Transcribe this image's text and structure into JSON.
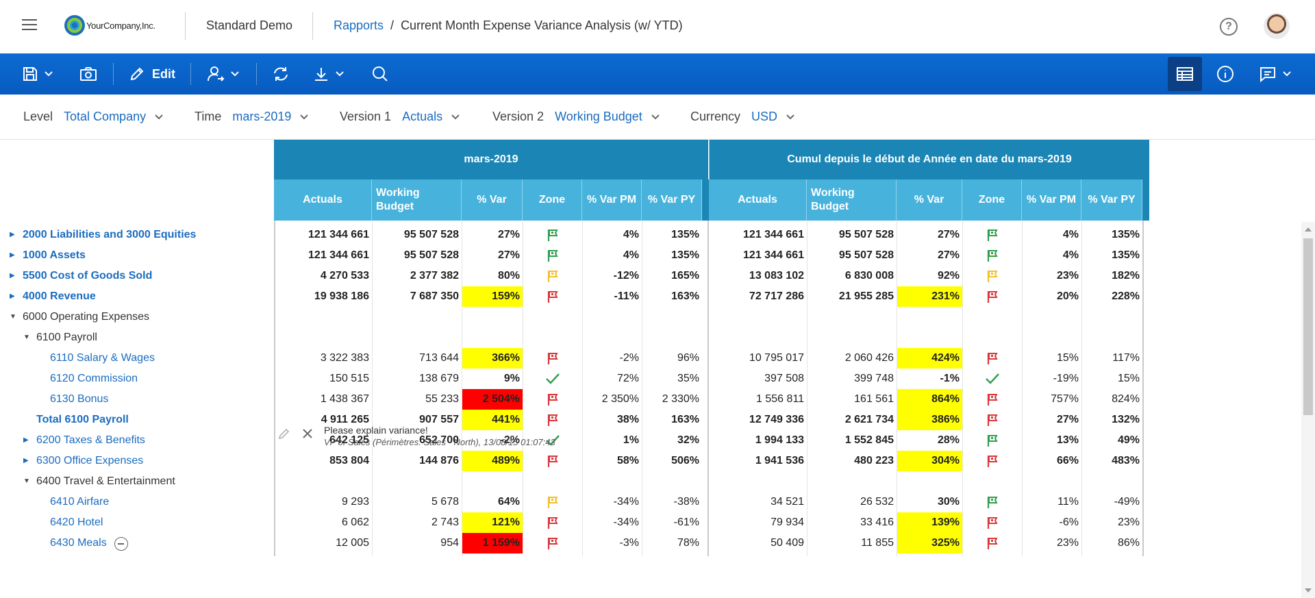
{
  "header": {
    "logo_text": "YourCompany,Inc.",
    "app_name": "Standard Demo",
    "breadcrumb_link": "Rapports",
    "breadcrumb_sep": "/",
    "breadcrumb_current": "Current Month Expense Variance Analysis (w/ YTD)",
    "help_glyph": "?"
  },
  "toolbar": {
    "edit_label": "Edit"
  },
  "filters": [
    {
      "label": "Level",
      "value": "Total Company"
    },
    {
      "label": "Time",
      "value": "mars-2019"
    },
    {
      "label": "Version 1",
      "value": "Actuals"
    },
    {
      "label": "Version 2",
      "value": "Working Budget"
    },
    {
      "label": "Currency",
      "value": "USD"
    }
  ],
  "grid": {
    "group1_title": "mars-2019",
    "group2_title": "Cumul depuis le début de Année en date du mars-2019",
    "columns": [
      "Actuals",
      "Working Budget",
      "% Var",
      "Zone",
      "% Var PM",
      "% Var PY"
    ],
    "rows": [
      {
        "label": "2000 Liabilities and 3000 Equities",
        "level": 0,
        "expand": "collapsed",
        "style": "link-bold",
        "m": [
          "121 344 661",
          "95 507 528",
          "27%",
          "flag-green",
          "4%",
          "135%"
        ],
        "m_hl": "",
        "y": [
          "121 344 661",
          "95 507 528",
          "27%",
          "flag-green",
          "4%",
          "135%"
        ],
        "y_hl": "",
        "bold": true
      },
      {
        "label": "1000 Assets",
        "level": 0,
        "expand": "collapsed",
        "style": "link-bold",
        "m": [
          "121 344 661",
          "95 507 528",
          "27%",
          "flag-green",
          "4%",
          "135%"
        ],
        "m_hl": "",
        "y": [
          "121 344 661",
          "95 507 528",
          "27%",
          "flag-green",
          "4%",
          "135%"
        ],
        "y_hl": "",
        "bold": true
      },
      {
        "label": "5500 Cost of Goods Sold",
        "level": 0,
        "expand": "collapsed",
        "style": "link-bold",
        "m": [
          "4 270 533",
          "2 377 382",
          "80%",
          "flag-yellow",
          "-12%",
          "165%"
        ],
        "m_hl": "",
        "y": [
          "13 083 102",
          "6 830 008",
          "92%",
          "flag-yellow",
          "23%",
          "182%"
        ],
        "y_hl": "",
        "bold": true
      },
      {
        "label": "4000 Revenue",
        "level": 0,
        "expand": "collapsed",
        "style": "link-bold",
        "m": [
          "19 938 186",
          "7 687 350",
          "159%",
          "flag-red",
          "-11%",
          "163%"
        ],
        "m_hl": "yellow",
        "y": [
          "72 717 286",
          "21 955 285",
          "231%",
          "flag-red",
          "20%",
          "228%"
        ],
        "y_hl": "yellow",
        "bold": true
      },
      {
        "label": "6000 Operating Expenses",
        "level": 0,
        "expand": "expanded",
        "style": "plain",
        "m": [
          "",
          "",
          "",
          "",
          "",
          ""
        ],
        "m_hl": "",
        "y": [
          "",
          "",
          "",
          "",
          "",
          ""
        ],
        "y_hl": "",
        "bold": false
      },
      {
        "label": "6100 Payroll",
        "level": 1,
        "expand": "expanded",
        "style": "plain",
        "m": [
          "",
          "",
          "",
          "",
          "",
          ""
        ],
        "m_hl": "",
        "y": [
          "",
          "",
          "",
          "",
          "",
          ""
        ],
        "y_hl": "",
        "bold": false
      },
      {
        "label": "6110 Salary & Wages",
        "level": 2,
        "expand": "",
        "style": "link",
        "m": [
          "3 322 383",
          "713 644",
          "366%",
          "flag-red",
          "-2%",
          "96%"
        ],
        "m_hl": "yellow",
        "y": [
          "10 795 017",
          "2 060 426",
          "424%",
          "flag-red",
          "15%",
          "117%"
        ],
        "y_hl": "yellow",
        "bold": false
      },
      {
        "label": "6120 Commission",
        "level": 2,
        "expand": "",
        "style": "link",
        "m": [
          "150 515",
          "138 679",
          "9%",
          "check",
          "72%",
          "35%"
        ],
        "m_hl": "",
        "y": [
          "397 508",
          "399 748",
          "-1%",
          "check",
          "-19%",
          "15%"
        ],
        "y_hl": "",
        "bold": false
      },
      {
        "label": "6130 Bonus",
        "level": 2,
        "expand": "",
        "style": "link",
        "m": [
          "1 438 367",
          "55 233",
          "2 504%",
          "flag-red",
          "2 350%",
          "2 330%"
        ],
        "m_hl": "red",
        "y": [
          "1 556 811",
          "161 561",
          "864%",
          "flag-red",
          "757%",
          "824%"
        ],
        "y_hl": "yellow",
        "bold": false
      },
      {
        "label": "Total 6100 Payroll",
        "level": 1,
        "expand": "",
        "style": "link-bold",
        "m": [
          "4 911 265",
          "907 557",
          "441%",
          "flag-red",
          "38%",
          "163%"
        ],
        "m_hl": "yellow",
        "y": [
          "12 749 336",
          "2 621 734",
          "386%",
          "flag-red",
          "27%",
          "132%"
        ],
        "y_hl": "yellow",
        "bold": true
      },
      {
        "label": "6200 Taxes & Benefits",
        "level": 1,
        "expand": "collapsed",
        "style": "link",
        "m": [
          "642 125",
          "652 700",
          "-2%",
          "check",
          "1%",
          "32%"
        ],
        "m_hl": "",
        "y": [
          "1 994 133",
          "1 552 845",
          "28%",
          "flag-green",
          "13%",
          "49%"
        ],
        "y_hl": "",
        "bold": true
      },
      {
        "label": "6300 Office Expenses",
        "level": 1,
        "expand": "collapsed",
        "style": "link",
        "m": [
          "853 804",
          "144 876",
          "489%",
          "flag-red",
          "58%",
          "506%"
        ],
        "m_hl": "yellow",
        "y": [
          "1 941 536",
          "480 223",
          "304%",
          "flag-red",
          "66%",
          "483%"
        ],
        "y_hl": "yellow",
        "bold": true
      },
      {
        "label": "6400 Travel & Entertainment",
        "level": 1,
        "expand": "expanded",
        "style": "plain",
        "m": [
          "",
          "",
          "",
          "",
          "",
          ""
        ],
        "m_hl": "",
        "y": [
          "",
          "",
          "",
          "",
          "",
          ""
        ],
        "y_hl": "",
        "bold": false
      },
      {
        "label": "6410 Airfare",
        "level": 2,
        "expand": "",
        "style": "link",
        "m": [
          "9 293",
          "5 678",
          "64%",
          "flag-yellow",
          "-34%",
          "-38%"
        ],
        "m_hl": "",
        "y": [
          "34 521",
          "26 532",
          "30%",
          "flag-green",
          "11%",
          "-49%"
        ],
        "y_hl": "",
        "bold": false
      },
      {
        "label": "6420 Hotel",
        "level": 2,
        "expand": "",
        "style": "link",
        "m": [
          "6 062",
          "2 743",
          "121%",
          "flag-red",
          "-34%",
          "-61%"
        ],
        "m_hl": "yellow",
        "y": [
          "79 934",
          "33 416",
          "139%",
          "flag-red",
          "-6%",
          "23%"
        ],
        "y_hl": "yellow",
        "bold": false
      },
      {
        "label": "6430 Meals",
        "level": 2,
        "expand": "",
        "style": "link",
        "comment": true,
        "m": [
          "12 005",
          "954",
          "1 159%",
          "flag-red",
          "-3%",
          "78%"
        ],
        "m_hl": "red",
        "y": [
          "50 409",
          "11 855",
          "325%",
          "flag-red",
          "23%",
          "86%"
        ],
        "y_hl": "yellow",
        "bold": false
      }
    ]
  },
  "comment": {
    "text": "Please explain variance!",
    "author": "VP of Sales (Périmètres: Sales - North), 13/08/15 01:07:43"
  },
  "colors": {
    "toolbar": "#0d6bd1",
    "header_dark": "#1b85b5",
    "header_light": "#47b3dc",
    "link": "#1a6cbf",
    "flag_green": "#2e9e4d",
    "flag_red": "#d9373b",
    "flag_yellow": "#f2c029"
  }
}
